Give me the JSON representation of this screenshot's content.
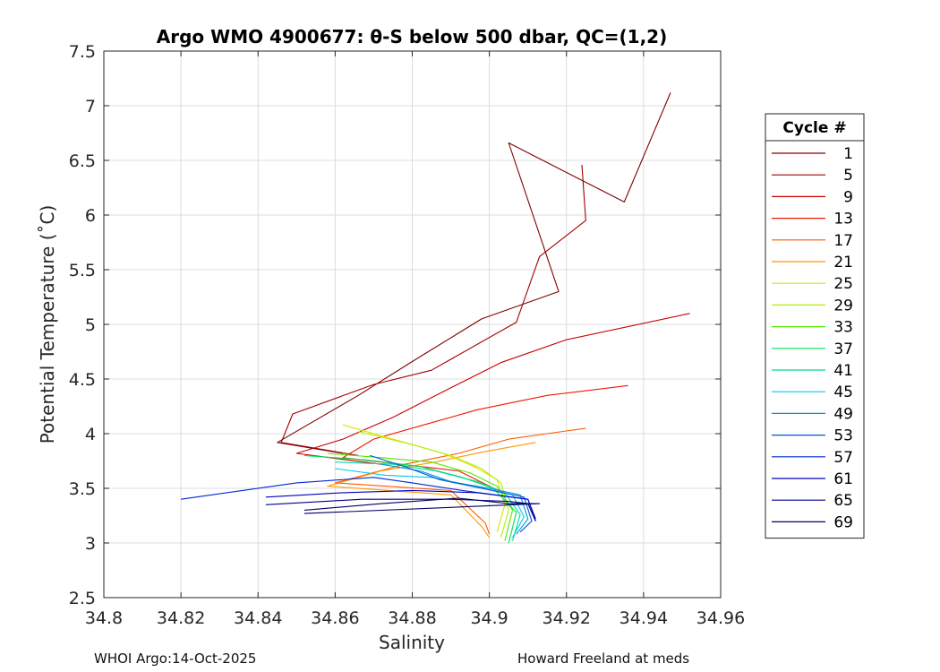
{
  "chart_data": {
    "type": "line",
    "title": "Argo WMO 4900677: θ-S below 500 dbar,  QC=(1,2)",
    "xlabel": "Salinity",
    "ylabel": "Potential Temperature (˚C)",
    "xlim": [
      34.8,
      34.96
    ],
    "ylim": [
      2.5,
      7.5
    ],
    "xticks": [
      "34.8",
      "34.82",
      "34.84",
      "34.86",
      "34.88",
      "34.9",
      "34.92",
      "34.94",
      "34.96"
    ],
    "yticks": [
      "2.5",
      "3",
      "3.5",
      "4",
      "4.5",
      "5",
      "5.5",
      "6",
      "6.5",
      "7",
      "7.5"
    ],
    "grid": true,
    "legend_title": "Cycle #",
    "legend_position": "right",
    "series": [
      {
        "name": "1",
        "color": "#7f0000",
        "points": [
          [
            34.947,
            7.12
          ],
          [
            34.935,
            6.12
          ],
          [
            34.905,
            6.66
          ],
          [
            34.918,
            5.3
          ],
          [
            34.898,
            5.05
          ],
          [
            34.88,
            4.66
          ],
          [
            34.866,
            4.35
          ],
          [
            34.845,
            3.92
          ],
          [
            34.862,
            3.82
          ]
        ]
      },
      {
        "name": "5",
        "color": "#a00000",
        "points": [
          [
            34.924,
            6.46
          ],
          [
            34.925,
            5.95
          ],
          [
            34.913,
            5.62
          ],
          [
            34.907,
            5.02
          ],
          [
            34.885,
            4.58
          ],
          [
            34.87,
            4.45
          ],
          [
            34.849,
            4.18
          ],
          [
            34.846,
            3.92
          ],
          [
            34.866,
            3.8
          ]
        ]
      },
      {
        "name": "9",
        "color": "#c80000",
        "points": [
          [
            34.952,
            5.1
          ],
          [
            34.92,
            4.86
          ],
          [
            34.903,
            4.65
          ],
          [
            34.89,
            4.42
          ],
          [
            34.875,
            4.15
          ],
          [
            34.862,
            3.95
          ],
          [
            34.85,
            3.82
          ],
          [
            34.872,
            3.72
          ]
        ]
      },
      {
        "name": "13",
        "color": "#ef1a00",
        "points": [
          [
            34.936,
            4.44
          ],
          [
            34.915,
            4.35
          ],
          [
            34.897,
            4.22
          ],
          [
            34.883,
            4.08
          ],
          [
            34.87,
            3.95
          ],
          [
            34.862,
            3.78
          ],
          [
            34.892,
            3.66
          ],
          [
            34.904,
            3.45
          ]
        ]
      },
      {
        "name": "17",
        "color": "#ff5a00",
        "points": [
          [
            34.925,
            4.05
          ],
          [
            34.905,
            3.95
          ],
          [
            34.892,
            3.82
          ],
          [
            34.878,
            3.72
          ],
          [
            34.86,
            3.55
          ],
          [
            34.89,
            3.48
          ],
          [
            34.899,
            3.18
          ],
          [
            34.9,
            3.08
          ]
        ]
      },
      {
        "name": "21",
        "color": "#ff9800",
        "points": [
          [
            34.912,
            3.92
          ],
          [
            34.898,
            3.83
          ],
          [
            34.886,
            3.74
          ],
          [
            34.872,
            3.66
          ],
          [
            34.858,
            3.52
          ],
          [
            34.89,
            3.44
          ],
          [
            34.898,
            3.15
          ],
          [
            34.9,
            3.05
          ]
        ]
      },
      {
        "name": "25",
        "color": "#e0e000",
        "points": [
          [
            34.862,
            4.08
          ],
          [
            34.878,
            3.92
          ],
          [
            34.888,
            3.82
          ],
          [
            34.896,
            3.7
          ],
          [
            34.902,
            3.58
          ],
          [
            34.904,
            3.35
          ],
          [
            34.902,
            3.1
          ]
        ]
      },
      {
        "name": "29",
        "color": "#b0f000",
        "points": [
          [
            34.866,
            4.02
          ],
          [
            34.88,
            3.9
          ],
          [
            34.89,
            3.8
          ],
          [
            34.898,
            3.68
          ],
          [
            34.903,
            3.55
          ],
          [
            34.905,
            3.3
          ],
          [
            34.903,
            3.05
          ]
        ]
      },
      {
        "name": "33",
        "color": "#55e800",
        "points": [
          [
            34.858,
            3.82
          ],
          [
            34.872,
            3.78
          ],
          [
            34.885,
            3.74
          ],
          [
            34.895,
            3.64
          ],
          [
            34.902,
            3.52
          ],
          [
            34.906,
            3.3
          ],
          [
            34.904,
            3.02
          ]
        ]
      },
      {
        "name": "37",
        "color": "#00e050",
        "points": [
          [
            34.852,
            3.8
          ],
          [
            34.868,
            3.76
          ],
          [
            34.882,
            3.7
          ],
          [
            34.893,
            3.6
          ],
          [
            34.901,
            3.5
          ],
          [
            34.907,
            3.28
          ],
          [
            34.905,
            3.0
          ]
        ]
      },
      {
        "name": "41",
        "color": "#00d8a0",
        "points": [
          [
            34.86,
            3.74
          ],
          [
            34.875,
            3.72
          ],
          [
            34.886,
            3.66
          ],
          [
            34.897,
            3.56
          ],
          [
            34.904,
            3.46
          ],
          [
            34.908,
            3.26
          ],
          [
            34.906,
            3.02
          ]
        ]
      },
      {
        "name": "45",
        "color": "#00c8f0",
        "points": [
          [
            34.86,
            3.68
          ],
          [
            34.873,
            3.62
          ],
          [
            34.885,
            3.6
          ],
          [
            34.896,
            3.52
          ],
          [
            34.906,
            3.44
          ],
          [
            34.909,
            3.24
          ],
          [
            34.906,
            3.05
          ]
        ]
      },
      {
        "name": "49",
        "color": "#0096d8",
        "points": [
          [
            34.872,
            3.72
          ],
          [
            34.882,
            3.66
          ],
          [
            34.89,
            3.56
          ],
          [
            34.9,
            3.5
          ],
          [
            34.908,
            3.44
          ],
          [
            34.91,
            3.22
          ],
          [
            34.907,
            3.08
          ]
        ]
      },
      {
        "name": "53",
        "color": "#005ad0",
        "points": [
          [
            34.869,
            3.8
          ],
          [
            34.878,
            3.7
          ],
          [
            34.887,
            3.58
          ],
          [
            34.898,
            3.5
          ],
          [
            34.909,
            3.42
          ],
          [
            34.911,
            3.2
          ],
          [
            34.908,
            3.1
          ]
        ]
      },
      {
        "name": "57",
        "color": "#0028d8",
        "points": [
          [
            34.82,
            3.4
          ],
          [
            34.85,
            3.55
          ],
          [
            34.87,
            3.6
          ],
          [
            34.88,
            3.55
          ],
          [
            34.893,
            3.48
          ],
          [
            34.91,
            3.4
          ],
          [
            34.912,
            3.2
          ]
        ]
      },
      {
        "name": "61",
        "color": "#0000c0",
        "points": [
          [
            34.842,
            3.42
          ],
          [
            34.862,
            3.46
          ],
          [
            34.88,
            3.48
          ],
          [
            34.897,
            3.46
          ],
          [
            34.91,
            3.4
          ],
          [
            34.912,
            3.22
          ]
        ]
      },
      {
        "name": "65",
        "color": "#00008c",
        "points": [
          [
            34.842,
            3.35
          ],
          [
            34.867,
            3.4
          ],
          [
            34.89,
            3.4
          ],
          [
            34.905,
            3.38
          ],
          [
            34.91,
            3.36
          ],
          [
            34.912,
            3.2
          ]
        ]
      },
      {
        "name": "69",
        "color": "#000064",
        "points": [
          [
            34.852,
            3.3
          ],
          [
            34.872,
            3.36
          ],
          [
            34.892,
            3.41
          ],
          [
            34.905,
            3.36
          ],
          [
            34.913,
            3.36
          ],
          [
            34.852,
            3.27
          ]
        ]
      }
    ]
  },
  "footer": {
    "left": "WHOI Argo:14-Oct-2025",
    "right": "Howard Freeland at meds"
  }
}
